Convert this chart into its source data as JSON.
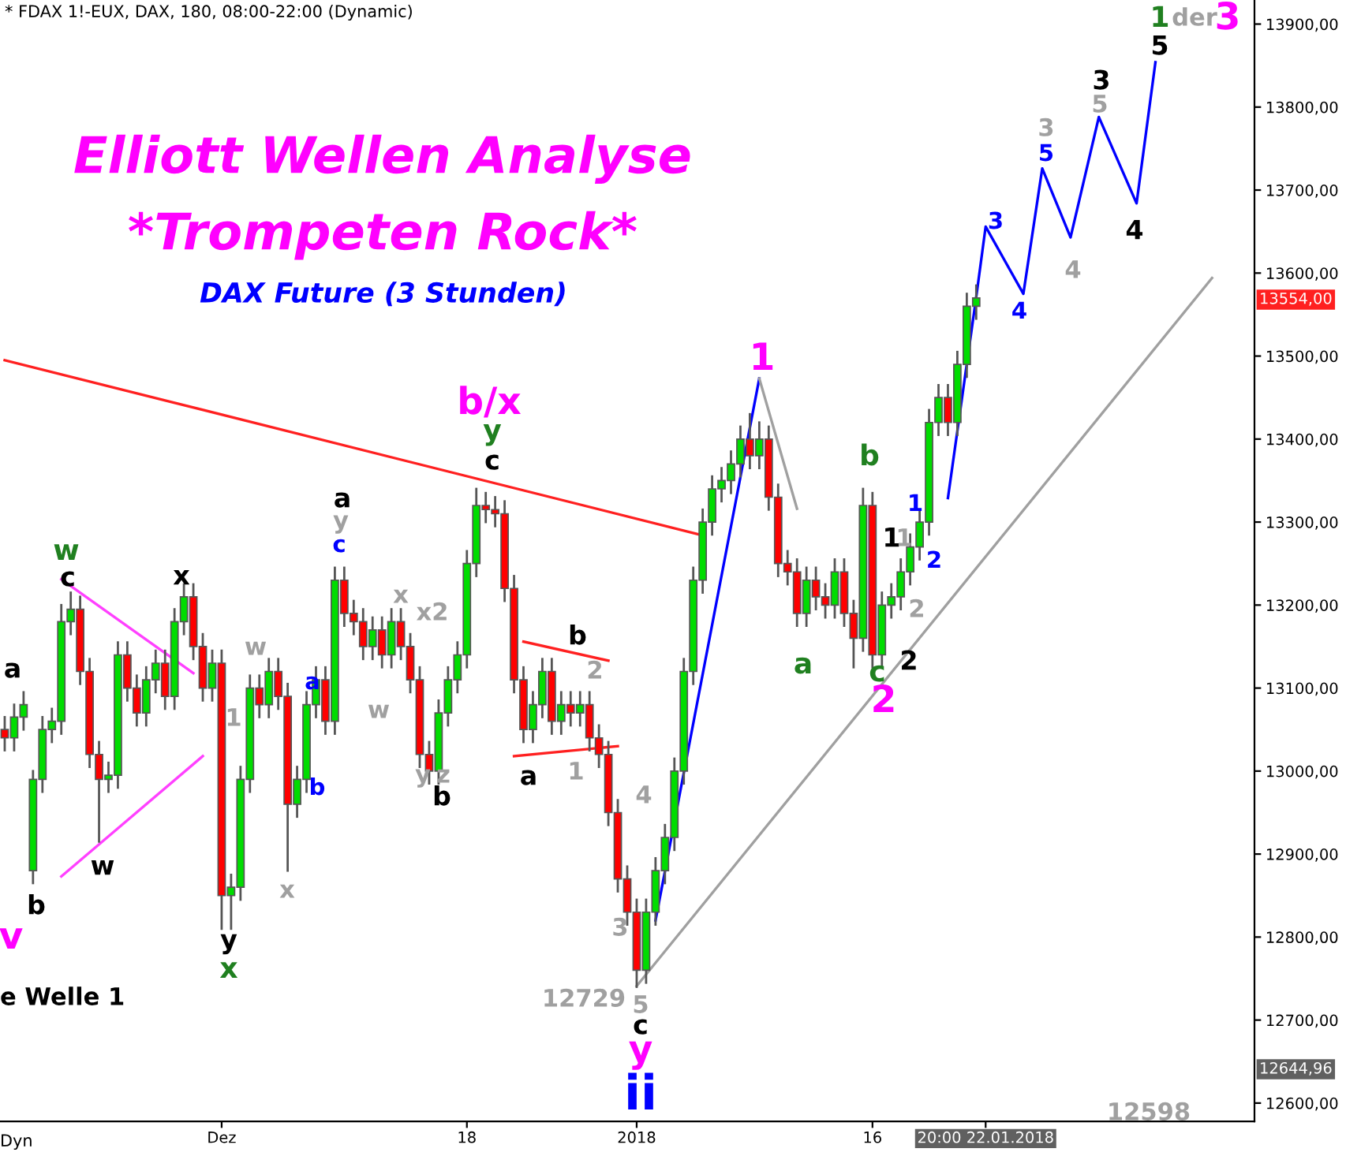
{
  "chart_data": {
    "type": "candlestick",
    "title": "Elliott Wellen Analyse",
    "subtitle": "*Trompeten Rock*",
    "categories": [
      null,
      null,
      null,
      null,
      null,
      null,
      null,
      null,
      null,
      null,
      null,
      null,
      null,
      null,
      null,
      null,
      null,
      null,
      null,
      null,
      null,
      null,
      null,
      "Dez",
      null,
      null,
      null,
      null,
      null,
      null,
      null,
      null,
      null,
      null,
      null,
      null,
      null,
      null,
      null,
      null,
      null,
      null,
      null,
      null,
      null,
      null,
      null,
      null,
      null,
      "18",
      null,
      null,
      null,
      null,
      null,
      null,
      null,
      null,
      null,
      null,
      null,
      null,
      null,
      null,
      null,
      null,
      null,
      "2018",
      null,
      null,
      null,
      null,
      null,
      null,
      null,
      null,
      null,
      null,
      null,
      null,
      null,
      null,
      null,
      null,
      null,
      null,
      null,
      null,
      null,
      null,
      null,
      null,
      "16",
      null,
      null,
      null,
      null,
      null,
      null,
      null,
      null,
      null,
      null,
      null,
      "20:00 22.01.2018",
      null,
      null,
      null,
      null,
      null,
      null,
      null,
      null,
      null,
      null,
      null,
      null,
      null,
      null,
      null,
      null,
      null,
      null,
      null,
      null,
      null,
      null,
      null,
      null,
      null,
      null,
      null,
      null
    ],
    "ohlc": [
      [
        13050,
        13065,
        13025,
        13040
      ],
      [
        13040,
        13080,
        13025,
        13065
      ],
      [
        13065,
        13095,
        13050,
        13080
      ],
      [
        12880,
        13000,
        12865,
        12990
      ],
      [
        12990,
        13065,
        12975,
        13050
      ],
      [
        13050,
        13075,
        13035,
        13060
      ],
      [
        13060,
        13200,
        13045,
        13180
      ],
      [
        13180,
        13215,
        13165,
        13195
      ],
      [
        13195,
        13210,
        13105,
        13120
      ],
      [
        13120,
        13135,
        13005,
        13020
      ],
      [
        13020,
        13035,
        12915,
        12990
      ],
      [
        12990,
        13010,
        12975,
        12995
      ],
      [
        12995,
        13155,
        12980,
        13140
      ],
      [
        13140,
        13155,
        13085,
        13100
      ],
      [
        13100,
        13115,
        13055,
        13070
      ],
      [
        13070,
        13125,
        13055,
        13110
      ],
      [
        13110,
        13145,
        13095,
        13130
      ],
      [
        13130,
        13145,
        13075,
        13090
      ],
      [
        13090,
        13195,
        13075,
        13180
      ],
      [
        13180,
        13225,
        13165,
        13210
      ],
      [
        13210,
        13225,
        13135,
        13150
      ],
      [
        13150,
        13165,
        13085,
        13100
      ],
      [
        13100,
        13145,
        13085,
        13130
      ],
      [
        13130,
        13145,
        12810,
        12850
      ],
      [
        12850,
        12875,
        12810,
        12860
      ],
      [
        12860,
        13005,
        12845,
        12990
      ],
      [
        12990,
        13115,
        12975,
        13100
      ],
      [
        13100,
        13115,
        13065,
        13080
      ],
      [
        13080,
        13135,
        13065,
        13120
      ],
      [
        13120,
        13135,
        13075,
        13090
      ],
      [
        13090,
        13105,
        12880,
        12960
      ],
      [
        12960,
        13005,
        12945,
        12990
      ],
      [
        12990,
        13095,
        12975,
        13080
      ],
      [
        13080,
        13125,
        13065,
        13110
      ],
      [
        13110,
        13125,
        13045,
        13060
      ],
      [
        13060,
        13245,
        13045,
        13230
      ],
      [
        13230,
        13245,
        13175,
        13190
      ],
      [
        13190,
        13205,
        13165,
        13180
      ],
      [
        13180,
        13195,
        13135,
        13150
      ],
      [
        13150,
        13185,
        13135,
        13170
      ],
      [
        13170,
        13185,
        13125,
        13140
      ],
      [
        13140,
        13195,
        13125,
        13180
      ],
      [
        13180,
        13195,
        13135,
        13150
      ],
      [
        13150,
        13165,
        13095,
        13110
      ],
      [
        13110,
        13125,
        13005,
        13020
      ],
      [
        13020,
        13035,
        12985,
        13000
      ],
      [
        13000,
        13085,
        12985,
        13070
      ],
      [
        13070,
        13125,
        13055,
        13110
      ],
      [
        13110,
        13155,
        13095,
        13140
      ],
      [
        13140,
        13265,
        13125,
        13250
      ],
      [
        13250,
        13340,
        13235,
        13320
      ],
      [
        13320,
        13335,
        13300,
        13315
      ],
      [
        13315,
        13330,
        13295,
        13310
      ],
      [
        13310,
        13325,
        13205,
        13220
      ],
      [
        13220,
        13235,
        13095,
        13110
      ],
      [
        13110,
        13125,
        13035,
        13050
      ],
      [
        13050,
        13095,
        13035,
        13080
      ],
      [
        13080,
        13135,
        13065,
        13120
      ],
      [
        13120,
        13135,
        13045,
        13060
      ],
      [
        13060,
        13095,
        13045,
        13080
      ],
      [
        13080,
        13095,
        13055,
        13070
      ],
      [
        13070,
        13095,
        13055,
        13080
      ],
      [
        13080,
        13095,
        13025,
        13040
      ],
      [
        13040,
        13055,
        13005,
        13020
      ],
      [
        13020,
        13035,
        12935,
        12950
      ],
      [
        12950,
        12965,
        12855,
        12870
      ],
      [
        12870,
        12885,
        12815,
        12830
      ],
      [
        12830,
        12845,
        12740,
        12760
      ],
      [
        12760,
        12845,
        12745,
        12830
      ],
      [
        12830,
        12895,
        12815,
        12880
      ],
      [
        12880,
        12935,
        12865,
        12920
      ],
      [
        12920,
        13015,
        12905,
        13000
      ],
      [
        13000,
        13135,
        12985,
        13120
      ],
      [
        13120,
        13245,
        13105,
        13230
      ],
      [
        13230,
        13315,
        13215,
        13300
      ],
      [
        13300,
        13355,
        13285,
        13340
      ],
      [
        13340,
        13365,
        13325,
        13350
      ],
      [
        13350,
        13385,
        13335,
        13370
      ],
      [
        13370,
        13415,
        13355,
        13400
      ],
      [
        13400,
        13430,
        13365,
        13380
      ],
      [
        13380,
        13420,
        13365,
        13400
      ],
      [
        13400,
        13415,
        13315,
        13330
      ],
      [
        13330,
        13345,
        13235,
        13250
      ],
      [
        13250,
        13265,
        13225,
        13240
      ],
      [
        13240,
        13255,
        13175,
        13190
      ],
      [
        13190,
        13245,
        13175,
        13230
      ],
      [
        13230,
        13245,
        13195,
        13210
      ],
      [
        13210,
        13225,
        13185,
        13200
      ],
      [
        13200,
        13255,
        13185,
        13240
      ],
      [
        13240,
        13255,
        13175,
        13190
      ],
      [
        13190,
        13205,
        13125,
        13160
      ],
      [
        13160,
        13340,
        13145,
        13320
      ],
      [
        13320,
        13335,
        13125,
        13140
      ],
      [
        13140,
        13215,
        13125,
        13200
      ],
      [
        13200,
        13225,
        13185,
        13210
      ],
      [
        13210,
        13255,
        13195,
        13240
      ],
      [
        13240,
        13285,
        13225,
        13270
      ],
      [
        13270,
        13315,
        13255,
        13300
      ],
      [
        13300,
        13435,
        13285,
        13420
      ],
      [
        13420,
        13465,
        13405,
        13450
      ],
      [
        13450,
        13465,
        13405,
        13420
      ],
      [
        13420,
        13505,
        13405,
        13490
      ],
      [
        13490,
        13575,
        13475,
        13560
      ],
      [
        13560,
        13585,
        13545,
        13570
      ],
      null,
      null,
      null,
      null,
      null,
      null,
      null,
      null,
      null,
      null,
      null,
      null,
      null,
      null,
      null,
      null,
      null,
      null,
      null,
      null,
      null,
      null,
      null,
      null,
      null,
      null,
      null,
      null,
      null
    ],
    "series": [
      {
        "type": "line",
        "color": "#ff2020",
        "values": [
          13495,
          null,
          null,
          null,
          null,
          null,
          null,
          null,
          null,
          null,
          null,
          null,
          null,
          null,
          null,
          null,
          null,
          null,
          null,
          null,
          null,
          null,
          null,
          null,
          null,
          null,
          null,
          null,
          null,
          null,
          null,
          null,
          null,
          null,
          null,
          null,
          null,
          null,
          null,
          null,
          null,
          null,
          null,
          null,
          null,
          null,
          null,
          null,
          null,
          null,
          null,
          null,
          null,
          null,
          null,
          null,
          null,
          null,
          null,
          null,
          null,
          null,
          null,
          null,
          null,
          null,
          null,
          null,
          null,
          null,
          null,
          null,
          null,
          null,
          13284,
          null,
          null,
          null,
          null,
          null,
          null,
          null,
          null,
          null,
          null,
          null,
          null,
          null,
          null,
          null,
          null,
          null,
          null,
          null,
          null,
          null,
          null,
          null,
          null,
          null,
          null,
          null,
          null,
          null,
          null,
          null,
          null,
          null,
          null,
          null,
          null,
          null,
          null,
          null,
          null,
          null,
          null,
          null,
          null,
          null,
          null,
          null,
          null,
          null,
          null,
          null,
          null,
          null,
          null,
          null,
          null,
          null,
          null
        ]
      },
      {
        "type": "line",
        "color": "#ff40ff",
        "values": [
          null,
          null,
          null,
          null,
          null,
          null,
          13231,
          null,
          null,
          null,
          null,
          null,
          null,
          null,
          null,
          null,
          null,
          null,
          null,
          null,
          13118,
          null,
          null,
          null,
          null,
          null,
          null,
          null,
          null,
          null,
          null,
          null,
          null,
          null,
          null,
          null,
          null,
          null,
          null,
          null,
          null,
          null,
          null,
          null,
          null,
          null,
          null,
          null,
          null,
          null,
          null,
          null,
          null,
          null,
          null,
          null,
          null,
          null,
          null,
          null,
          null,
          null,
          null,
          null,
          null,
          null,
          null,
          null,
          null,
          null,
          null,
          null,
          null,
          null,
          null,
          null,
          null,
          null,
          null,
          null,
          null,
          null,
          null,
          null,
          null,
          null,
          null,
          null,
          null,
          null,
          null,
          null,
          null,
          null,
          null,
          null,
          null,
          null,
          null,
          null,
          null,
          null,
          null,
          null,
          null,
          null,
          null,
          null,
          null,
          null,
          null,
          null,
          null,
          null,
          null,
          null,
          null,
          null,
          null,
          null,
          null,
          null,
          null,
          null,
          null,
          null,
          null,
          null,
          null,
          null,
          null,
          null,
          null
        ]
      },
      {
        "type": "line",
        "color": "#ff40ff",
        "values": [
          null,
          null,
          null,
          null,
          null,
          null,
          12873,
          null,
          null,
          null,
          null,
          null,
          null,
          null,
          null,
          null,
          null,
          null,
          null,
          null,
          null,
          13018,
          null,
          null,
          null,
          null,
          null,
          null,
          null,
          null,
          null,
          null,
          null,
          null,
          null,
          null,
          null,
          null,
          null,
          null,
          null,
          null,
          null,
          null,
          null,
          null,
          null,
          null,
          null,
          null,
          null,
          null,
          null,
          null,
          null,
          null,
          null,
          null,
          null,
          null,
          null,
          null,
          null,
          null,
          null,
          null,
          null,
          null,
          null,
          null,
          null,
          null,
          null,
          null,
          null,
          null,
          null,
          null,
          null,
          null,
          null,
          null,
          null,
          null,
          null,
          null,
          null,
          null,
          null,
          null,
          null,
          null,
          null,
          null,
          null,
          null,
          null,
          null,
          null,
          null,
          null,
          null,
          null,
          null,
          null,
          null,
          null,
          null,
          null,
          null,
          null,
          null,
          null,
          null,
          null,
          null,
          null,
          null,
          null,
          null,
          null,
          null,
          null,
          null,
          null,
          null,
          null,
          null,
          null,
          null,
          null,
          null,
          null
        ]
      },
      {
        "type": "line",
        "color": "#ff2020",
        "values": [
          null,
          null,
          null,
          null,
          null,
          null,
          null,
          null,
          null,
          null,
          null,
          null,
          null,
          null,
          null,
          null,
          null,
          null,
          null,
          null,
          null,
          null,
          null,
          null,
          null,
          null,
          null,
          null,
          null,
          null,
          null,
          null,
          null,
          null,
          null,
          null,
          null,
          null,
          null,
          null,
          null,
          null,
          null,
          null,
          null,
          null,
          null,
          null,
          null,
          null,
          null,
          null,
          null,
          null,
          null,
          13156,
          null,
          null,
          null,
          null,
          null,
          null,
          null,
          null,
          13133,
          null,
          null,
          null,
          null,
          null,
          null,
          null,
          null,
          null,
          null,
          null,
          null,
          null,
          null,
          null,
          null,
          null,
          null,
          null,
          null,
          null,
          null,
          null,
          null,
          null,
          null,
          null,
          null,
          null,
          null,
          null,
          null,
          null,
          null,
          null,
          null,
          null,
          null,
          null,
          null,
          null,
          null,
          null,
          null,
          null,
          null,
          null,
          null,
          null,
          null,
          null,
          null,
          null,
          null,
          null,
          null,
          null,
          null,
          null,
          null,
          null,
          null,
          null,
          null,
          null,
          null,
          null,
          null
        ]
      },
      {
        "type": "line",
        "color": "#ff2020",
        "values": [
          null,
          null,
          null,
          null,
          null,
          null,
          null,
          null,
          null,
          null,
          null,
          null,
          null,
          null,
          null,
          null,
          null,
          null,
          null,
          null,
          null,
          null,
          null,
          null,
          null,
          null,
          null,
          null,
          null,
          null,
          null,
          null,
          null,
          null,
          null,
          null,
          null,
          null,
          null,
          null,
          null,
          null,
          null,
          null,
          null,
          null,
          null,
          null,
          null,
          null,
          null,
          null,
          null,
          null,
          13018,
          null,
          null,
          null,
          null,
          null,
          null,
          null,
          null,
          null,
          null,
          13030,
          null,
          null,
          null,
          null,
          null,
          null,
          null,
          null,
          null,
          null,
          null,
          null,
          null,
          null,
          null,
          null,
          null,
          null,
          null,
          null,
          null,
          null,
          null,
          null,
          null,
          null,
          null,
          null,
          null,
          null,
          null,
          null,
          null,
          null,
          null,
          null,
          null,
          null,
          null,
          null,
          null,
          null,
          null,
          null,
          null,
          null,
          null,
          null,
          null,
          null,
          null,
          null,
          null,
          null,
          null,
          null,
          null,
          null,
          null,
          null,
          null,
          null,
          null,
          null,
          null,
          null,
          null
        ]
      },
      {
        "type": "line",
        "color": "#0000ff",
        "values": [
          null,
          null,
          null,
          null,
          null,
          null,
          null,
          null,
          null,
          null,
          null,
          null,
          null,
          null,
          null,
          null,
          null,
          null,
          null,
          null,
          null,
          null,
          null,
          null,
          null,
          null,
          null,
          null,
          null,
          null,
          null,
          null,
          null,
          null,
          null,
          null,
          null,
          null,
          null,
          null,
          null,
          null,
          null,
          null,
          null,
          null,
          null,
          null,
          null,
          null,
          null,
          null,
          null,
          null,
          null,
          null,
          null,
          null,
          null,
          null,
          null,
          null,
          null,
          null,
          null,
          null,
          null,
          null,
          null,
          12820,
          null,
          null,
          null,
          null,
          null,
          null,
          null,
          null,
          null,
          null,
          13473,
          null,
          null,
          null,
          null,
          null,
          null,
          null,
          null,
          null,
          null,
          null,
          null,
          null,
          null,
          null,
          null,
          null,
          null,
          null,
          null,
          null,
          null,
          null,
          null,
          null,
          null,
          null,
          null,
          null,
          null,
          null,
          null,
          null,
          null,
          null,
          null,
          null,
          null,
          null,
          null,
          null,
          null,
          null,
          null,
          null,
          null,
          null,
          null,
          null,
          null,
          null,
          null
        ]
      },
      {
        "type": "line",
        "color": "#a0a0a0",
        "values": [
          null,
          null,
          null,
          null,
          null,
          null,
          null,
          null,
          null,
          null,
          null,
          null,
          null,
          null,
          null,
          null,
          null,
          null,
          null,
          null,
          null,
          null,
          null,
          null,
          null,
          null,
          null,
          null,
          null,
          null,
          null,
          null,
          null,
          null,
          null,
          null,
          null,
          null,
          null,
          null,
          null,
          null,
          null,
          null,
          null,
          null,
          null,
          null,
          null,
          null,
          null,
          null,
          null,
          null,
          null,
          null,
          null,
          null,
          null,
          null,
          null,
          null,
          null,
          null,
          null,
          null,
          null,
          null,
          null,
          null,
          null,
          null,
          null,
          null,
          null,
          null,
          null,
          null,
          null,
          null,
          13473,
          null,
          null,
          null,
          13316,
          null,
          null,
          null,
          null,
          null,
          null,
          null,
          null,
          null,
          null,
          null,
          null,
          null,
          null,
          null,
          null,
          null,
          null,
          null,
          null,
          null,
          null,
          null,
          null,
          null,
          null,
          null,
          null,
          null,
          null,
          null,
          null,
          null,
          null,
          null,
          null,
          null,
          null,
          null,
          null,
          null,
          null,
          null,
          null,
          null,
          null,
          null,
          null
        ]
      },
      {
        "type": "line",
        "color": "#a0a0a0",
        "values": [
          null,
          null,
          null,
          null,
          null,
          null,
          null,
          null,
          null,
          null,
          null,
          null,
          null,
          null,
          null,
          null,
          null,
          null,
          null,
          null,
          null,
          null,
          null,
          null,
          null,
          null,
          null,
          null,
          null,
          null,
          null,
          null,
          null,
          null,
          null,
          null,
          null,
          null,
          null,
          null,
          null,
          null,
          null,
          null,
          null,
          null,
          null,
          null,
          null,
          null,
          null,
          null,
          null,
          null,
          null,
          null,
          null,
          null,
          null,
          null,
          null,
          null,
          null,
          null,
          null,
          null,
          null,
          12741,
          null,
          null,
          null,
          null,
          null,
          null,
          null,
          null,
          null,
          null,
          null,
          null,
          null,
          null,
          null,
          null,
          null,
          null,
          null,
          null,
          null,
          null,
          null,
          null,
          null,
          null,
          null,
          null,
          null,
          null,
          null,
          null,
          null,
          null,
          null,
          null,
          null,
          null,
          null,
          null,
          null,
          null,
          null,
          null,
          null,
          null,
          null,
          null,
          null,
          null,
          null,
          null,
          null,
          null,
          null,
          null,
          null,
          null,
          null,
          null,
          13594,
          null,
          null,
          null,
          null
        ]
      },
      {
        "type": "line",
        "color": "#0000ff",
        "values": [
          null,
          null,
          null,
          null,
          null,
          null,
          null,
          null,
          null,
          null,
          null,
          null,
          null,
          null,
          null,
          null,
          null,
          null,
          null,
          null,
          null,
          null,
          null,
          null,
          null,
          null,
          null,
          null,
          null,
          null,
          null,
          null,
          null,
          null,
          null,
          null,
          null,
          null,
          null,
          null,
          null,
          null,
          null,
          null,
          null,
          null,
          null,
          null,
          null,
          null,
          null,
          null,
          null,
          null,
          null,
          null,
          null,
          null,
          null,
          null,
          null,
          null,
          null,
          null,
          null,
          null,
          null,
          null,
          null,
          null,
          null,
          null,
          null,
          null,
          null,
          null,
          null,
          null,
          null,
          null,
          null,
          null,
          null,
          null,
          null,
          null,
          null,
          null,
          null,
          null,
          null,
          null,
          null,
          null,
          null,
          null,
          null,
          null,
          null,
          null,
          13329,
          null,
          null,
          13571,
          13656,
          null,
          null,
          null,
          13575,
          null,
          13726,
          null,
          null,
          13643,
          null,
          null,
          13788,
          null,
          null,
          null,
          13684,
          null,
          13854,
          null,
          null,
          null,
          null,
          null,
          null,
          null,
          null,
          null,
          null
        ]
      }
    ],
    "ylim": [
      12578,
      13929
    ],
    "yticks": [
      {
        "value": 12600,
        "label": "12600,00"
      },
      {
        "value": 12700,
        "label": "12700,00"
      },
      {
        "value": 12800,
        "label": "12800,00"
      },
      {
        "value": 12900,
        "label": "12900,00"
      },
      {
        "value": 13000,
        "label": "13000,00"
      },
      {
        "value": 13100,
        "label": "13100,00"
      },
      {
        "value": 13200,
        "label": "13200,00"
      },
      {
        "value": 13300,
        "label": "13300,00"
      },
      {
        "value": 13400,
        "label": "13400,00"
      },
      {
        "value": 13500,
        "label": "13500,00"
      },
      {
        "value": 13600,
        "label": "13600,00"
      },
      {
        "value": 13700,
        "label": "13700,00"
      },
      {
        "value": 13800,
        "label": "13800,00"
      },
      {
        "value": 13900,
        "label": "13900,00"
      }
    ],
    "grid": false,
    "legend": false,
    "annotations": [
      "* FDAX 1!-EUX, DAX, 180, 08:00-22:00 (Dynamic)",
      "DAX Future (3 Stunden)",
      "e Welle 1",
      "Dyn",
      "13554,00",
      "12644,96",
      "a",
      "w",
      "c",
      "b",
      "v",
      "w",
      "x",
      "w",
      "1",
      "y",
      "x",
      "x",
      "a",
      "b",
      "a",
      "y",
      "c",
      "w",
      "x",
      "x2",
      "y",
      "z",
      "b",
      "b/x",
      "y",
      "c",
      "b",
      "2",
      "a",
      "1",
      "4",
      "3",
      "12729",
      "5",
      "c",
      "y",
      "ii",
      "1",
      "a",
      "b",
      "c",
      "2",
      "1",
      "1",
      "2",
      "2",
      "1",
      "2",
      "3",
      "4",
      "3",
      "5",
      "4",
      "3",
      "5",
      "4",
      "5",
      "1",
      "der",
      "3",
      "12598"
    ]
  }
}
